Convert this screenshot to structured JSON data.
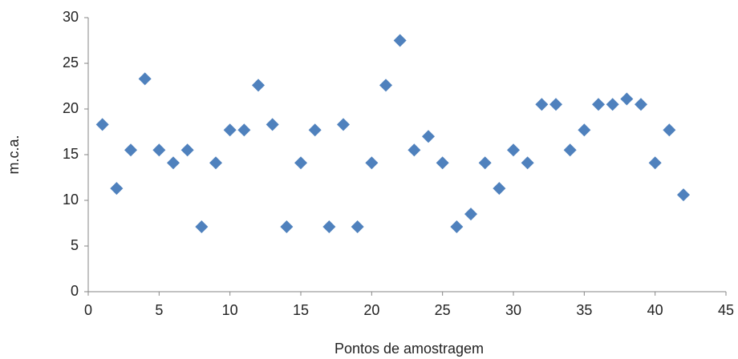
{
  "chart_data": {
    "type": "scatter",
    "x_label": "Pontos de amostragem",
    "y_label": "m.c.a.",
    "x": [
      1,
      2,
      3,
      4,
      5,
      6,
      7,
      8,
      9,
      10,
      11,
      12,
      13,
      14,
      15,
      16,
      17,
      18,
      19,
      20,
      21,
      22,
      23,
      24,
      25,
      26,
      27,
      28,
      29,
      30,
      31,
      32,
      33,
      34,
      35,
      36,
      37,
      38,
      39,
      40,
      41,
      42
    ],
    "series": [
      {
        "color": "#4f81bd",
        "values": [
          18.3,
          11.3,
          15.5,
          23.3,
          15.5,
          14.1,
          15.5,
          7.1,
          14.1,
          17.7,
          17.7,
          22.6,
          18.3,
          7.1,
          14.1,
          17.7,
          7.1,
          18.3,
          7.1,
          14.1,
          22.6,
          27.5,
          15.5,
          17,
          14.1,
          7.1,
          8.5,
          14.1,
          11.3,
          15.5,
          14.1,
          20.5,
          20.5,
          15.5,
          17.7,
          20.5,
          20.5,
          21.1,
          20.5,
          14.1,
          17.7,
          10.6
        ]
      }
    ],
    "xlim": [
      0,
      45
    ],
    "xticks": [
      0,
      5,
      10,
      15,
      20,
      25,
      30,
      35,
      40,
      45
    ],
    "ylim": [
      0,
      30
    ],
    "yticks": [
      0,
      5,
      10,
      15,
      20,
      25,
      30
    ],
    "grid": false
  }
}
